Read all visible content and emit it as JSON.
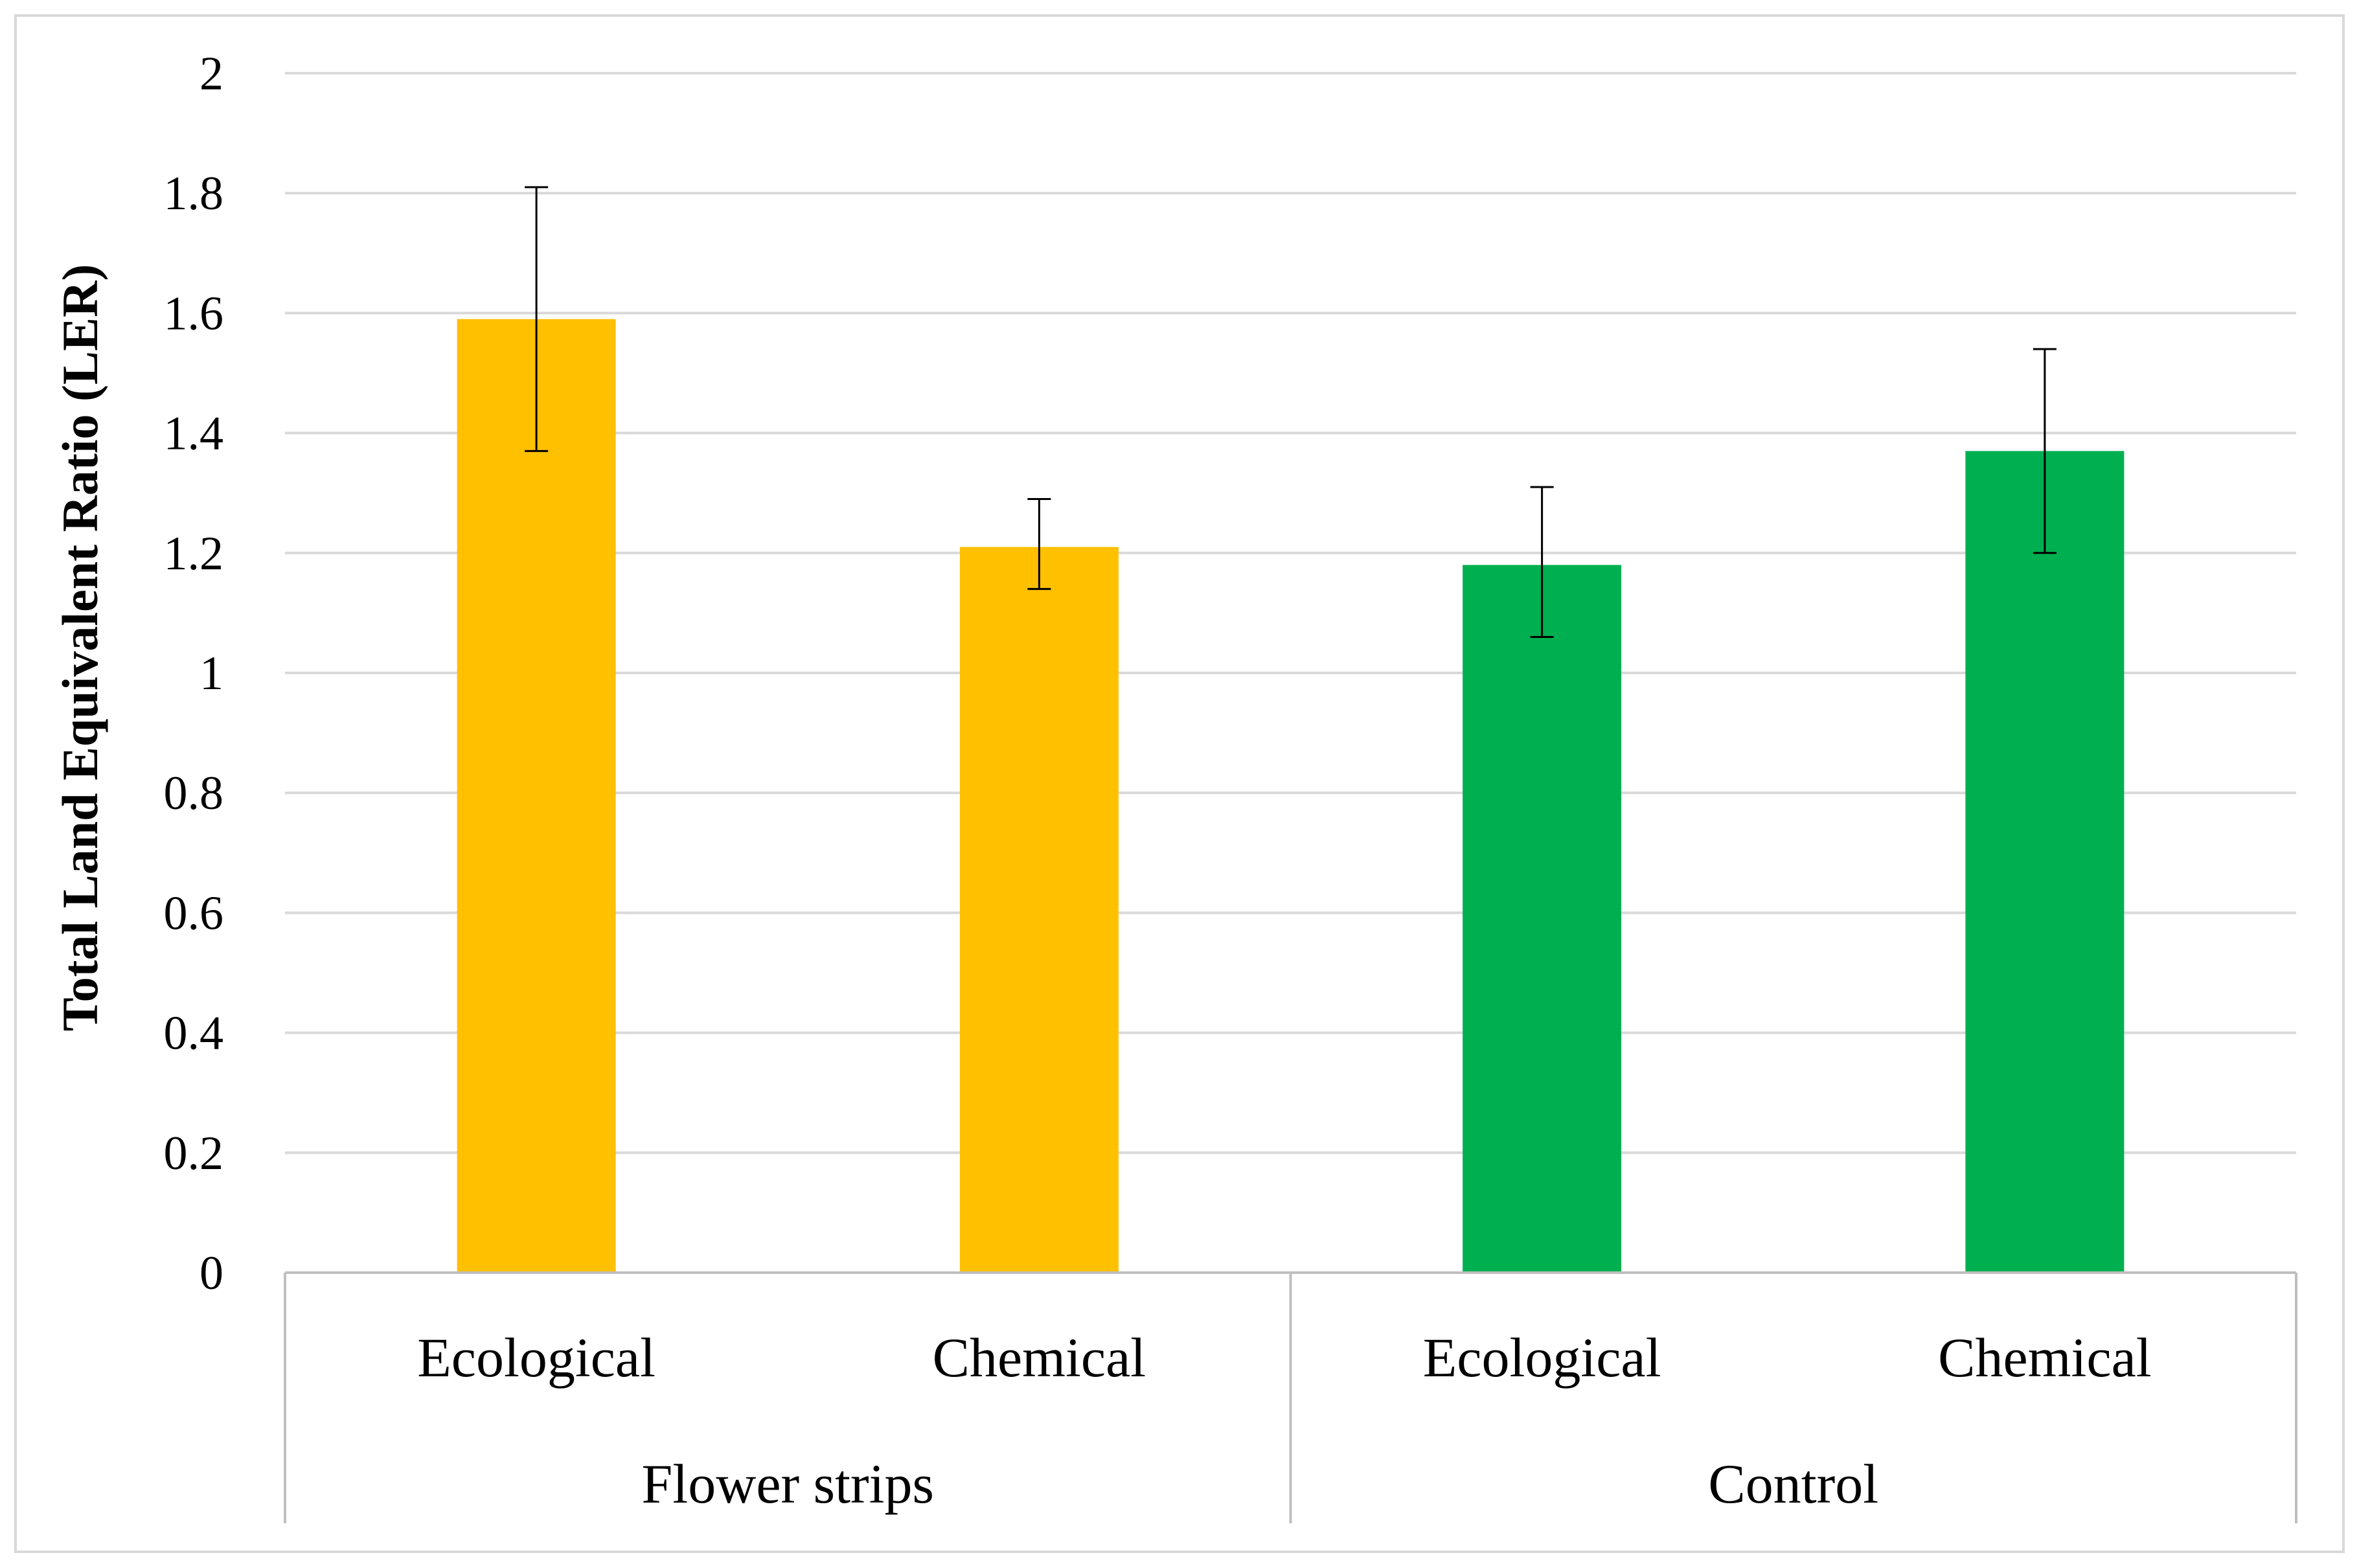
{
  "chart_data": {
    "type": "bar",
    "title": "",
    "xlabel": "",
    "ylabel": "Total Land Equivalent Ratio (LER)",
    "ylim": [
      0,
      2
    ],
    "yticks": [
      "0",
      "0.2",
      "0.4",
      "0.6",
      "0.8",
      "1",
      "1.2",
      "1.4",
      "1.6",
      "1.8",
      "2"
    ],
    "grid": true,
    "legend": "none",
    "groups": [
      {
        "name": "Flower strips",
        "color": "#FFC000",
        "bars": [
          {
            "category": "Ecological",
            "value": 1.59,
            "error_low": 1.37,
            "error_high": 1.81
          },
          {
            "category": "Chemical",
            "value": 1.21,
            "error_low": 1.14,
            "error_high": 1.29
          }
        ]
      },
      {
        "name": "Control",
        "color": "#00B050",
        "bars": [
          {
            "category": "Ecological",
            "value": 1.18,
            "error_low": 1.06,
            "error_high": 1.31
          },
          {
            "category": "Chemical",
            "value": 1.37,
            "error_low": 1.2,
            "error_high": 1.54
          }
        ]
      }
    ]
  }
}
